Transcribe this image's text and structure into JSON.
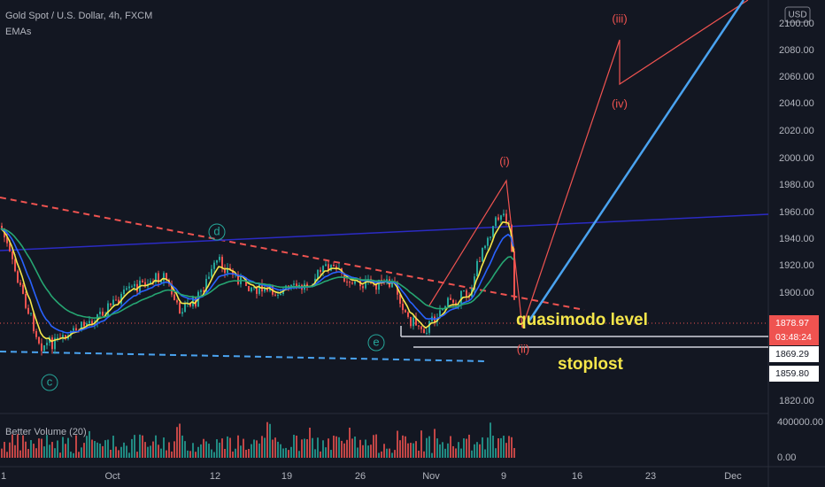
{
  "header": {
    "title": "Gold Spot / U.S. Dollar, 4h, FXCM",
    "indicator": "EMAs",
    "currency": "USD"
  },
  "price_axis": [
    "2100.00",
    "2080.00",
    "2060.00",
    "2040.00",
    "2020.00",
    "2000.00",
    "1980.00",
    "1960.00",
    "1940.00",
    "1920.00",
    "1900.00",
    "1820.00"
  ],
  "price_tags": [
    "1878.97",
    "03:48:24",
    "1869.29",
    "1859.80"
  ],
  "volume_indicator": "Better Volume (20)",
  "volume_axis": [
    "400000.00",
    "0.00"
  ],
  "time_axis": [
    "1",
    "Oct",
    "12",
    "19",
    "26",
    "Nov",
    "9",
    "16",
    "23",
    "Dec"
  ],
  "wave_labels": [
    "(iii)",
    "(iv)",
    "(i)",
    "(ii)",
    "d",
    "e",
    "c"
  ],
  "annotations": [
    "quasimodo level",
    "stoplost"
  ]
}
